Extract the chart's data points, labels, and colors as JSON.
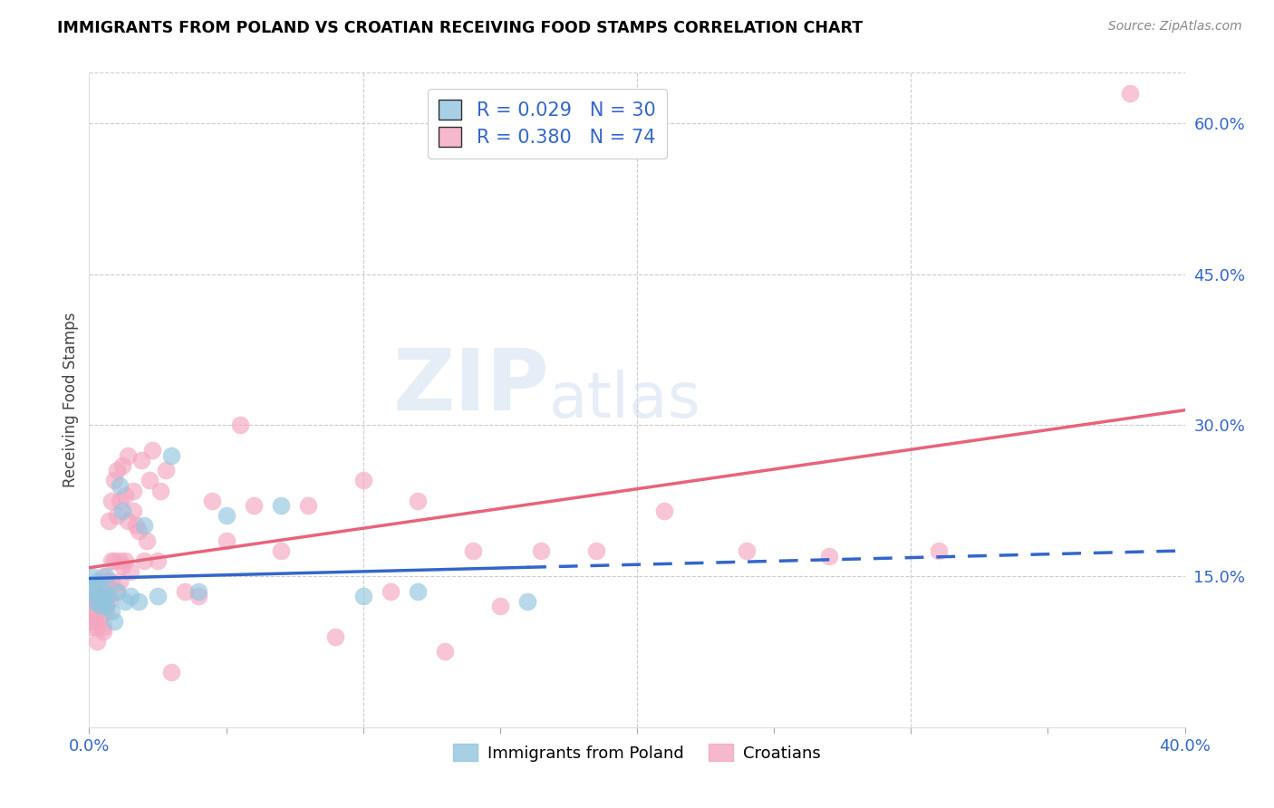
{
  "title": "IMMIGRANTS FROM POLAND VS CROATIAN RECEIVING FOOD STAMPS CORRELATION CHART",
  "source": "Source: ZipAtlas.com",
  "ylabel": "Receiving Food Stamps",
  "xlim": [
    0.0,
    0.4
  ],
  "ylim": [
    0.0,
    0.65
  ],
  "poland_R": 0.029,
  "poland_N": 30,
  "croatian_R": 0.38,
  "croatian_N": 74,
  "poland_color": "#92c5de",
  "croatian_color": "#f4a6c0",
  "poland_line_color": "#3366cc",
  "croatian_line_color": "#e8637a",
  "legend_number_color": "#3366cc",
  "axis_label_color": "#3366cc",
  "grid_color": "#cccccc",
  "poland_x": [
    0.001,
    0.001,
    0.002,
    0.002,
    0.003,
    0.003,
    0.004,
    0.004,
    0.005,
    0.005,
    0.006,
    0.006,
    0.007,
    0.008,
    0.009,
    0.01,
    0.011,
    0.012,
    0.013,
    0.015,
    0.018,
    0.02,
    0.025,
    0.03,
    0.04,
    0.05,
    0.07,
    0.1,
    0.12,
    0.16
  ],
  "poland_y": [
    0.135,
    0.15,
    0.125,
    0.14,
    0.13,
    0.145,
    0.12,
    0.14,
    0.13,
    0.125,
    0.15,
    0.12,
    0.13,
    0.115,
    0.105,
    0.135,
    0.24,
    0.215,
    0.125,
    0.13,
    0.125,
    0.2,
    0.13,
    0.27,
    0.135,
    0.21,
    0.22,
    0.13,
    0.135,
    0.125
  ],
  "croatian_x": [
    0.001,
    0.001,
    0.001,
    0.002,
    0.002,
    0.002,
    0.003,
    0.003,
    0.003,
    0.003,
    0.004,
    0.004,
    0.004,
    0.005,
    0.005,
    0.005,
    0.006,
    0.006,
    0.006,
    0.007,
    0.007,
    0.008,
    0.008,
    0.008,
    0.009,
    0.009,
    0.01,
    0.01,
    0.01,
    0.011,
    0.011,
    0.011,
    0.012,
    0.012,
    0.013,
    0.013,
    0.014,
    0.014,
    0.015,
    0.016,
    0.016,
    0.017,
    0.018,
    0.019,
    0.02,
    0.021,
    0.022,
    0.023,
    0.025,
    0.026,
    0.028,
    0.03,
    0.035,
    0.04,
    0.045,
    0.05,
    0.055,
    0.06,
    0.07,
    0.08,
    0.09,
    0.1,
    0.11,
    0.12,
    0.13,
    0.14,
    0.15,
    0.165,
    0.185,
    0.21,
    0.24,
    0.27,
    0.31,
    0.38
  ],
  "croatian_y": [
    0.115,
    0.125,
    0.1,
    0.11,
    0.13,
    0.105,
    0.1,
    0.115,
    0.085,
    0.125,
    0.125,
    0.11,
    0.135,
    0.1,
    0.15,
    0.095,
    0.115,
    0.145,
    0.13,
    0.125,
    0.205,
    0.145,
    0.225,
    0.165,
    0.245,
    0.165,
    0.135,
    0.255,
    0.21,
    0.145,
    0.225,
    0.165,
    0.16,
    0.26,
    0.165,
    0.23,
    0.205,
    0.27,
    0.155,
    0.235,
    0.215,
    0.2,
    0.195,
    0.265,
    0.165,
    0.185,
    0.245,
    0.275,
    0.165,
    0.235,
    0.255,
    0.055,
    0.135,
    0.13,
    0.225,
    0.185,
    0.3,
    0.22,
    0.175,
    0.22,
    0.09,
    0.245,
    0.135,
    0.225,
    0.075,
    0.175,
    0.12,
    0.175,
    0.175,
    0.215,
    0.175,
    0.17,
    0.175,
    0.63
  ]
}
